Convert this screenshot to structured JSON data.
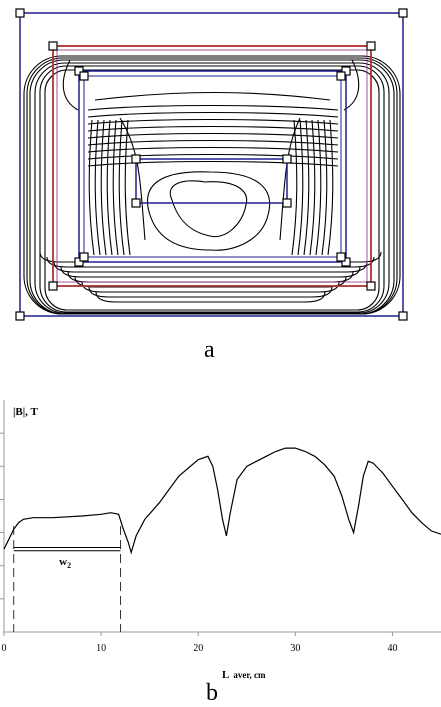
{
  "panels": {
    "a": {
      "label": "a"
    },
    "b": {
      "label": "b"
    }
  },
  "chart_data": {
    "type": "line",
    "ylabel": "|B|, T",
    "xlabel_main": "L",
    "xlabel_sub": "aver, cm",
    "xlim": [
      0,
      45
    ],
    "ylim": [
      0,
      7
    ],
    "x_ticks": [
      0,
      10,
      20,
      30,
      40
    ],
    "annotation": {
      "main": "w",
      "sub": "2",
      "x_start": 1,
      "x_end": 12
    },
    "series": [
      {
        "x": [
          0,
          0.5,
          1,
          1.5,
          2,
          3,
          5,
          8,
          10,
          11,
          11.8,
          12.3,
          12.8,
          13.1,
          13.6,
          14.5,
          16,
          18,
          20,
          21,
          21.5,
          22,
          22.5,
          22.9,
          23.3,
          24,
          25,
          26,
          27,
          28,
          29,
          30,
          31,
          32,
          33,
          34,
          34.8,
          35.5,
          36,
          36.5,
          37,
          37.5,
          38,
          39,
          40,
          41,
          42,
          43,
          44,
          45
        ],
        "y": [
          2.5,
          2.8,
          3.1,
          3.3,
          3.4,
          3.45,
          3.45,
          3.5,
          3.55,
          3.6,
          3.55,
          3.1,
          2.7,
          2.4,
          2.9,
          3.4,
          3.9,
          4.7,
          5.2,
          5.3,
          5.0,
          4.3,
          3.4,
          2.9,
          3.6,
          4.6,
          5.0,
          5.15,
          5.3,
          5.45,
          5.55,
          5.55,
          5.45,
          5.3,
          5.05,
          4.7,
          4.1,
          3.4,
          3.0,
          3.8,
          4.7,
          5.15,
          5.1,
          4.8,
          4.4,
          4.0,
          3.6,
          3.3,
          3.05,
          2.95
        ]
      }
    ]
  }
}
